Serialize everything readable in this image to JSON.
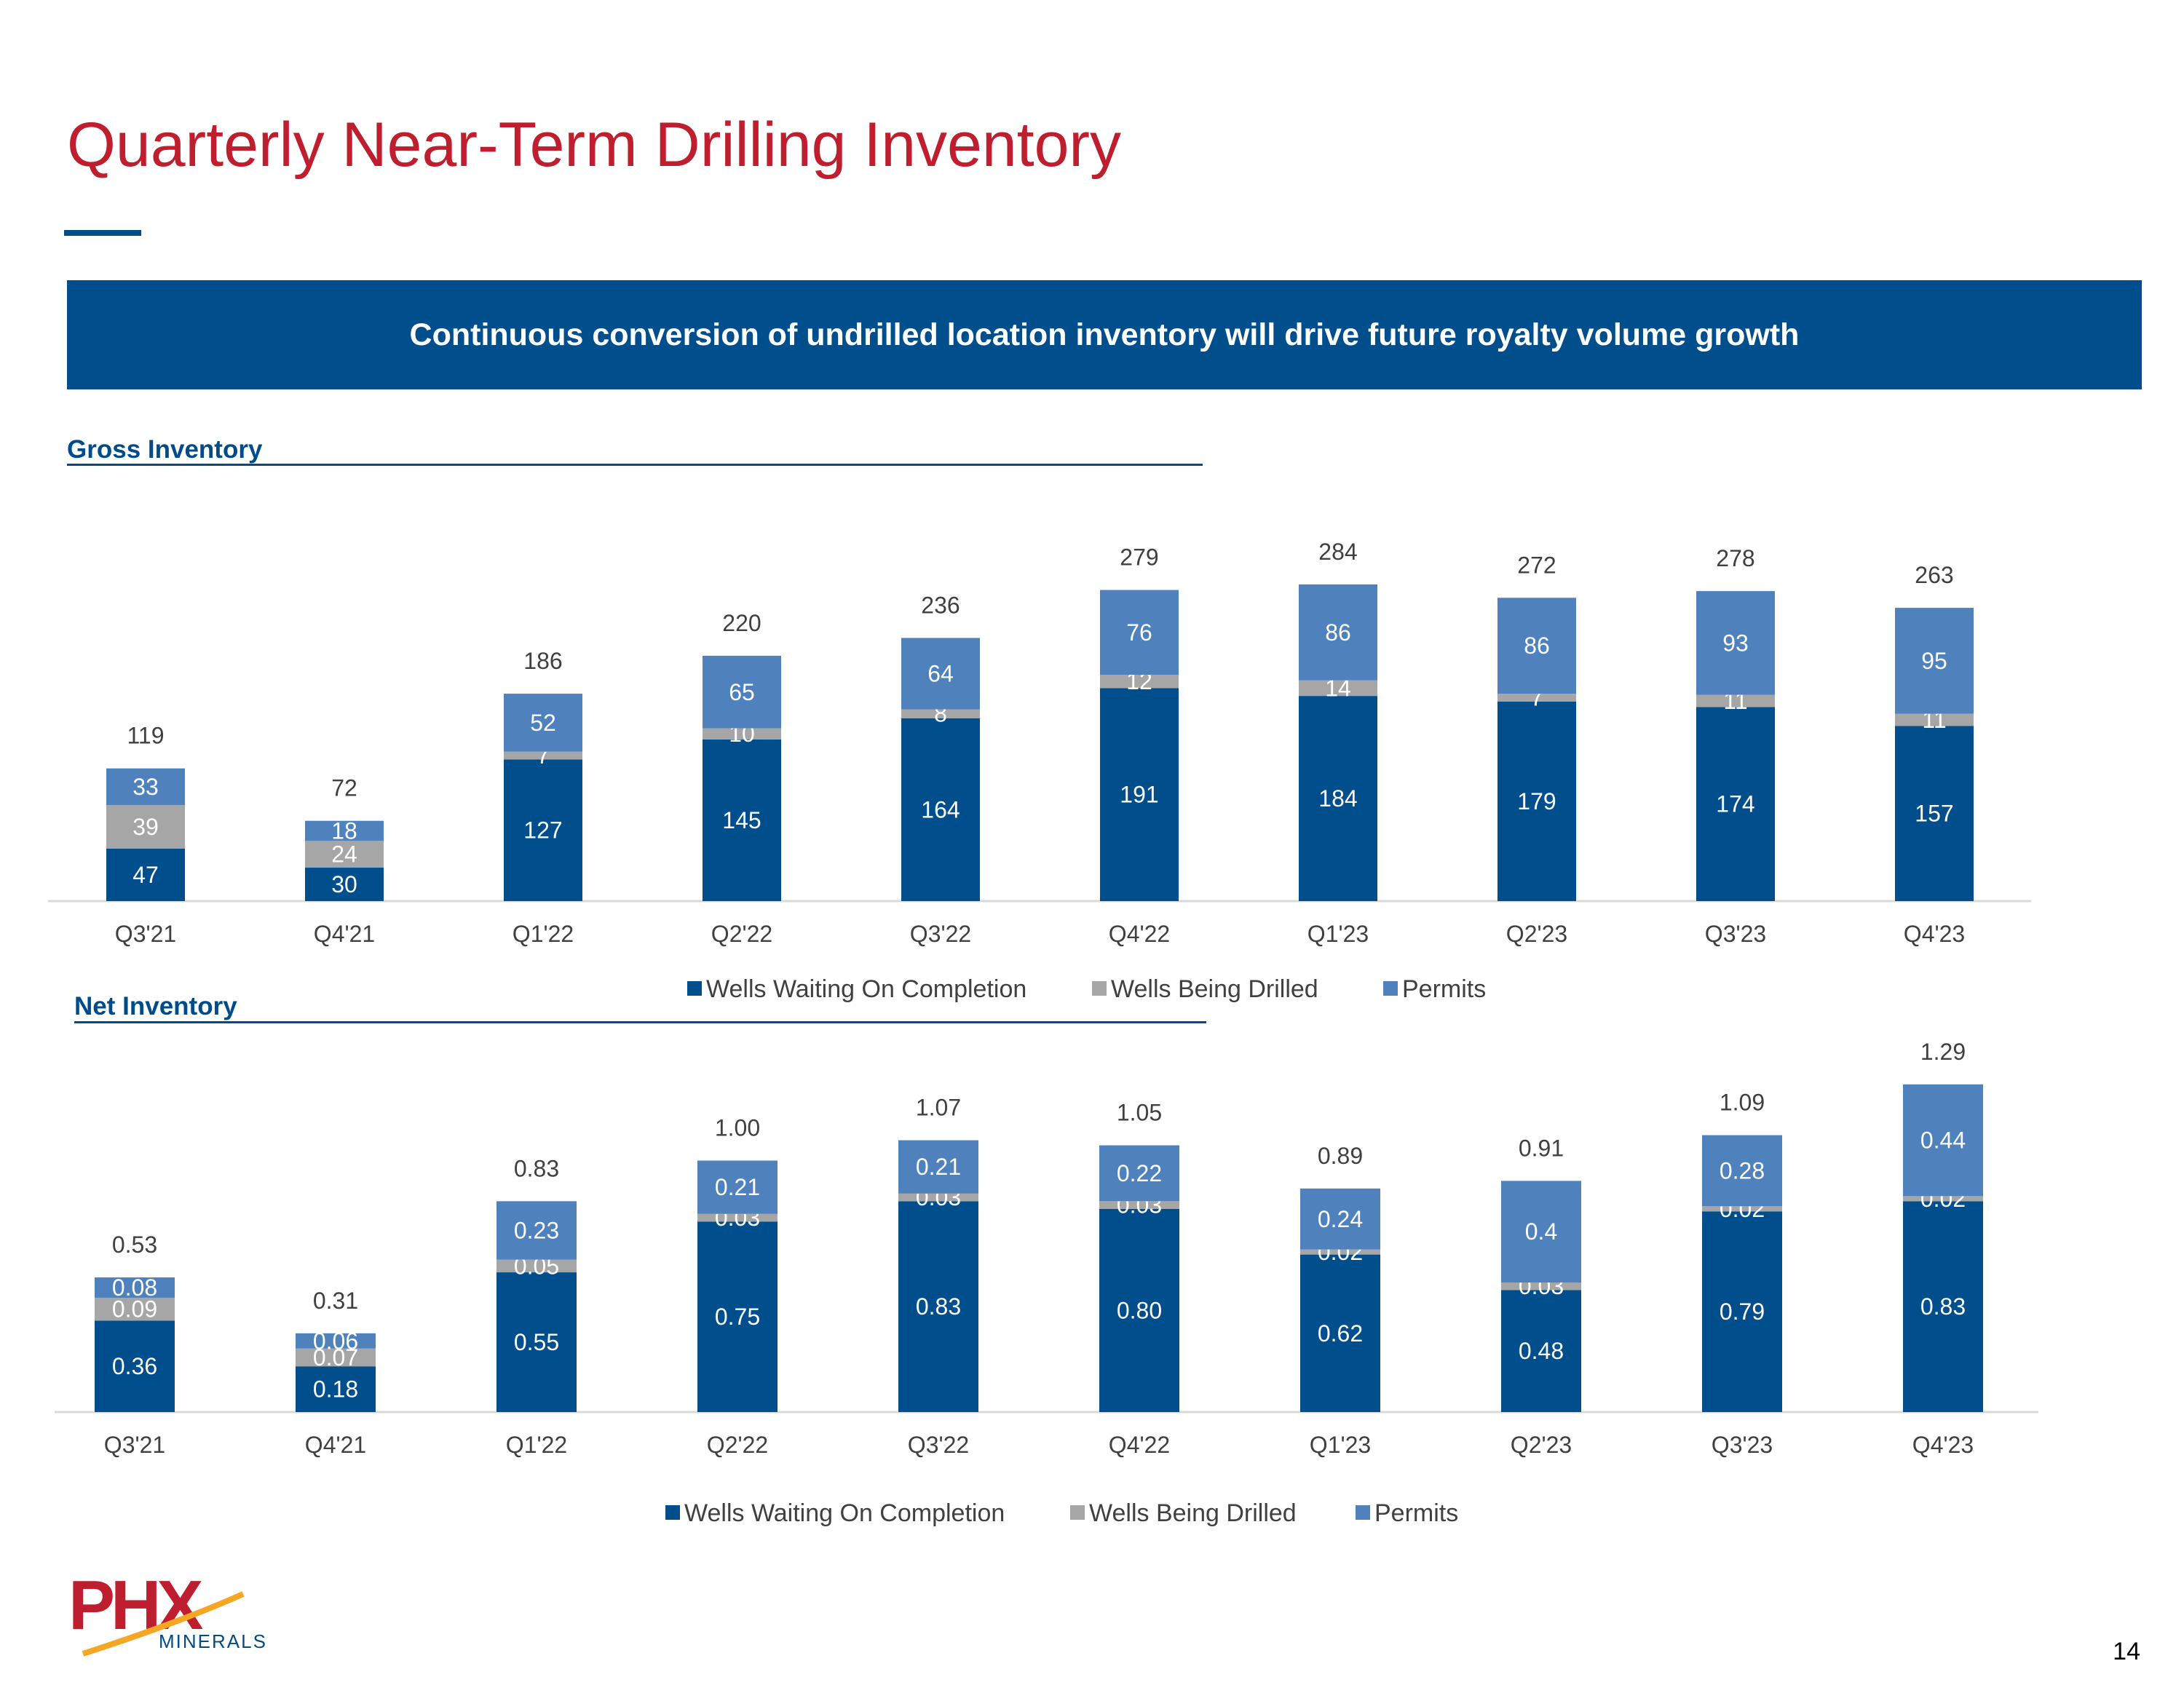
{
  "page": {
    "title": "Quarterly Near-Term Drilling Inventory",
    "banner": "Continuous conversion of undrilled location inventory will drive future royalty volume growth",
    "page_number": "14",
    "logo_text": "PHX",
    "logo_subtext": "MINERALS"
  },
  "colors": {
    "wells_waiting": "#004F8C",
    "wells_drilled": "#A6A6A6",
    "permits": "#4F81BD",
    "title_red": "#BE1E2D"
  },
  "chart_data": [
    {
      "type": "bar",
      "stacked": true,
      "title": "Gross Inventory",
      "categories": [
        "Q3'21",
        "Q4'21",
        "Q1'22",
        "Q2'22",
        "Q3'22",
        "Q4'22",
        "Q1'23",
        "Q2'23",
        "Q3'23",
        "Q4'23"
      ],
      "series": [
        {
          "name": "Wells Waiting On Completion",
          "values": [
            "47",
            "30",
            "127",
            "145",
            "164",
            "191",
            "184",
            "179",
            "174",
            "157"
          ]
        },
        {
          "name": "Wells Being Drilled",
          "values": [
            "39",
            "24",
            "7",
            "10",
            "8",
            "12",
            "14",
            "7",
            "11",
            "11"
          ]
        },
        {
          "name": "Permits",
          "values": [
            "33",
            "18",
            "52",
            "65",
            "64",
            "76",
            "86",
            "86",
            "93",
            "95"
          ]
        }
      ],
      "totals": [
        "119",
        "72",
        "186",
        "220",
        "236",
        "279",
        "284",
        "272",
        "278",
        "263"
      ],
      "ylim": [
        0,
        300
      ],
      "legend": "bottom"
    },
    {
      "type": "bar",
      "stacked": true,
      "title": "Net Inventory",
      "categories": [
        "Q3'21",
        "Q4'21",
        "Q1'22",
        "Q2'22",
        "Q3'22",
        "Q4'22",
        "Q1'23",
        "Q2'23",
        "Q3'23",
        "Q4'23"
      ],
      "series": [
        {
          "name": "Wells Waiting On Completion",
          "values": [
            "0.36",
            "0.18",
            "0.55",
            "0.75",
            "0.83",
            "0.80",
            "0.62",
            "0.48",
            "0.79",
            "0.83"
          ]
        },
        {
          "name": "Wells Being Drilled",
          "values": [
            "0.09",
            "0.07",
            "0.05",
            "0.03",
            "0.03",
            "0.03",
            "0.02",
            "0.03",
            "0.02",
            "0.02"
          ]
        },
        {
          "name": "Permits",
          "values": [
            "0.08",
            "0.06",
            "0.23",
            "0.21",
            "0.21",
            "0.22",
            "0.24",
            "0.4",
            "0.28",
            "0.44"
          ]
        }
      ],
      "totals": [
        "0.53",
        "0.31",
        "0.83",
        "1.00",
        "1.07",
        "1.05",
        "0.89",
        "0.91",
        "1.09",
        "1.29"
      ],
      "ylim": [
        0,
        1.4
      ],
      "legend": "bottom"
    }
  ]
}
